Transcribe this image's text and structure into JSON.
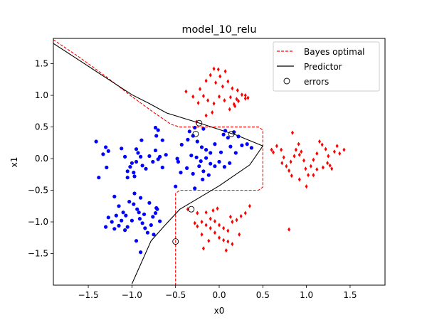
{
  "chart_data": {
    "type": "scatter",
    "title": "model_10_relu",
    "xlabel": "x0",
    "ylabel": "x1",
    "xlim": [
      -1.9,
      1.9
    ],
    "ylim": [
      -2.0,
      1.9
    ],
    "xticks": [
      -1.5,
      -1.0,
      -0.5,
      0.0,
      0.5,
      1.0,
      1.5
    ],
    "xtick_labels": [
      "−1.5",
      "−1.0",
      "−0.5",
      "0.0",
      "0.5",
      "1.0",
      "1.5"
    ],
    "yticks": [
      -1.5,
      -1.0,
      -0.5,
      0.0,
      0.5,
      1.0,
      1.5
    ],
    "ytick_labels": [
      "−1.5",
      "−1.0",
      "−0.5",
      "0.0",
      "0.5",
      "1.0",
      "1.5"
    ],
    "grid": false,
    "legend_position": "top-right",
    "colors": {
      "class0": "#0000ff",
      "class1": "#ff0000",
      "predictor": "#000000",
      "bayes": "#ff0000"
    },
    "legend": [
      {
        "label": "Bayes optimal",
        "style": "dashed-line",
        "color": "#ff0000"
      },
      {
        "label": "Predictor",
        "style": "solid-line",
        "color": "#000000"
      },
      {
        "label": "errors",
        "style": "open-circle",
        "color": "#000000"
      }
    ],
    "series": [
      {
        "class": 0,
        "marker": "dot",
        "points": [
          [
            -1.41,
            0.27
          ],
          [
            -1.33,
            0.07
          ],
          [
            -1.3,
            0.18
          ],
          [
            -1.27,
            0.12
          ],
          [
            -1.29,
            -0.14
          ],
          [
            -1.12,
            0.16
          ],
          [
            -1.08,
            0.03
          ],
          [
            -1.05,
            -0.2
          ],
          [
            -1.02,
            -0.13
          ],
          [
            -1.0,
            -0.07
          ],
          [
            -0.98,
            -0.22
          ],
          [
            -1.05,
            -0.3
          ],
          [
            -0.95,
            -0.05
          ],
          [
            -0.97,
            -0.28
          ],
          [
            -0.93,
            0.09
          ],
          [
            -0.9,
            0.03
          ],
          [
            -0.88,
            -0.11
          ],
          [
            -0.84,
            -0.16
          ],
          [
            -0.8,
            0.04
          ],
          [
            -0.76,
            -0.05
          ],
          [
            -0.73,
            0.13
          ],
          [
            -0.7,
            -0.01
          ],
          [
            -0.68,
            0.03
          ],
          [
            -0.65,
            -0.14
          ],
          [
            -0.61,
            0.06
          ],
          [
            -0.95,
            0.15
          ],
          [
            -0.89,
            0.29
          ],
          [
            -0.72,
            0.36
          ],
          [
            -0.65,
            0.29
          ],
          [
            -0.43,
            0.22
          ],
          [
            -0.36,
            0.3
          ],
          [
            -0.3,
            0.36
          ],
          [
            -0.25,
            0.27
          ],
          [
            -0.2,
            0.18
          ],
          [
            -0.15,
            0.14
          ],
          [
            -0.1,
            0.09
          ],
          [
            -0.05,
            0.23
          ],
          [
            0.02,
            0.1
          ],
          [
            0.05,
            0.38
          ],
          [
            0.1,
            0.33
          ],
          [
            0.13,
            0.19
          ],
          [
            0.19,
            0.09
          ],
          [
            0.26,
            0.21
          ],
          [
            0.32,
            0.23
          ],
          [
            0.37,
            0.17
          ],
          [
            0.22,
            0.35
          ],
          [
            -0.32,
            0.05
          ],
          [
            -0.26,
            0.02
          ],
          [
            -0.21,
            -0.04
          ],
          [
            -0.15,
            0.01
          ],
          [
            -0.1,
            -0.08
          ],
          [
            -0.05,
            -0.12
          ],
          [
            0.0,
            -0.05
          ],
          [
            0.06,
            -0.13
          ],
          [
            0.12,
            -0.07
          ],
          [
            -0.44,
            -0.22
          ],
          [
            -0.37,
            -0.15
          ],
          [
            -0.3,
            -0.24
          ],
          [
            -0.23,
            -0.12
          ],
          [
            -0.18,
            -0.2
          ],
          [
            -0.12,
            -0.26
          ],
          [
            -0.47,
            -0.05
          ],
          [
            -0.28,
            0.49
          ],
          [
            -0.34,
            0.43
          ],
          [
            -0.18,
            0.47
          ],
          [
            0.17,
            0.42
          ],
          [
            0.07,
            0.44
          ],
          [
            -0.73,
            0.49
          ],
          [
            -0.7,
            0.45
          ],
          [
            -0.5,
            -0.44
          ],
          [
            -0.28,
            -0.47
          ],
          [
            -0.19,
            -0.33
          ],
          [
            -0.48,
            0.0
          ],
          [
            -1.38,
            -0.3
          ],
          [
            -1.2,
            -0.6
          ],
          [
            -1.15,
            -0.75
          ],
          [
            -1.1,
            -0.85
          ],
          [
            -1.07,
            -0.9
          ],
          [
            -1.03,
            -0.68
          ],
          [
            -0.98,
            -0.72
          ],
          [
            -0.94,
            -0.8
          ],
          [
            -0.91,
            -0.95
          ],
          [
            -0.88,
            -1.02
          ],
          [
            -0.85,
            -1.1
          ],
          [
            -0.82,
            -1.17
          ],
          [
            -0.78,
            -1.05
          ],
          [
            -0.76,
            -0.92
          ],
          [
            -0.73,
            -0.86
          ],
          [
            -0.71,
            -0.8
          ],
          [
            -0.8,
            -0.7
          ],
          [
            -0.9,
            -0.62
          ],
          [
            -0.97,
            -0.55
          ],
          [
            -1.0,
            -0.98
          ],
          [
            -1.05,
            -1.08
          ],
          [
            -1.08,
            -1.13
          ],
          [
            -1.12,
            -0.98
          ],
          [
            -1.15,
            -1.06
          ],
          [
            -1.2,
            -1.11
          ],
          [
            -1.23,
            -1.0
          ],
          [
            -1.27,
            -0.93
          ],
          [
            -1.3,
            -1.08
          ],
          [
            -0.95,
            -1.3
          ],
          [
            -0.9,
            -1.48
          ],
          [
            -0.75,
            -1.2
          ],
          [
            -0.72,
            -0.78
          ],
          [
            -0.92,
            -0.85
          ],
          [
            -0.86,
            -0.88
          ],
          [
            -0.68,
            -0.99
          ],
          [
            -1.18,
            -0.9
          ]
        ]
      },
      {
        "class": 1,
        "marker": "diamond",
        "points": [
          [
            -0.06,
            1.42
          ],
          [
            -0.01,
            1.41
          ],
          [
            0.07,
            1.38
          ],
          [
            0.01,
            1.3
          ],
          [
            -0.1,
            1.32
          ],
          [
            -0.04,
            1.2
          ],
          [
            0.04,
            1.14
          ],
          [
            0.1,
            1.22
          ],
          [
            -0.15,
            1.23
          ],
          [
            0.15,
            1.11
          ],
          [
            0.21,
            1.08
          ],
          [
            0.26,
            1.01
          ],
          [
            0.2,
            0.94
          ],
          [
            0.13,
            0.97
          ],
          [
            0.06,
            0.92
          ],
          [
            0.0,
            0.98
          ],
          [
            -0.06,
            0.87
          ],
          [
            -0.13,
            0.92
          ],
          [
            -0.18,
            0.99
          ],
          [
            -0.24,
            0.88
          ],
          [
            -0.3,
            0.98
          ],
          [
            -0.38,
            1.06
          ],
          [
            -0.22,
            1.1
          ],
          [
            0.3,
            0.95
          ],
          [
            0.18,
            0.83
          ],
          [
            0.12,
            0.78
          ],
          [
            -0.08,
            0.73
          ],
          [
            -0.15,
            0.68
          ],
          [
            0.22,
            0.91
          ],
          [
            0.3,
            1.0
          ],
          [
            0.33,
            0.96
          ],
          [
            -0.26,
            0.58
          ],
          [
            0.17,
            0.86
          ],
          [
            0.6,
            0.14
          ],
          [
            0.62,
            0.1
          ],
          [
            0.66,
            0.2
          ],
          [
            0.71,
            0.14
          ],
          [
            0.74,
            0.02
          ],
          [
            0.77,
            -0.12
          ],
          [
            0.8,
            -0.19
          ],
          [
            0.82,
            -0.05
          ],
          [
            0.86,
            0.04
          ],
          [
            0.88,
            0.14
          ],
          [
            0.91,
            0.23
          ],
          [
            0.94,
            0.11
          ],
          [
            0.97,
            -0.03
          ],
          [
            0.99,
            -0.16
          ],
          [
            1.02,
            -0.26
          ],
          [
            1.05,
            -0.12
          ],
          [
            1.08,
            -0.02
          ],
          [
            1.12,
            0.08
          ],
          [
            1.15,
            0.27
          ],
          [
            1.18,
            0.22
          ],
          [
            1.22,
            0.15
          ],
          [
            1.25,
            0.04
          ],
          [
            1.27,
            -0.11
          ],
          [
            1.29,
            -0.16
          ],
          [
            1.32,
            0.11
          ],
          [
            1.35,
            0.2
          ],
          [
            1.38,
            0.08
          ],
          [
            1.43,
            0.14
          ],
          [
            0.84,
            0.41
          ],
          [
            1.08,
            -0.26
          ],
          [
            1.0,
            -0.44
          ],
          [
            0.92,
            -0.33
          ],
          [
            0.83,
            -0.27
          ],
          [
            0.72,
            -0.07
          ],
          [
            1.12,
            -0.17
          ],
          [
            1.19,
            -0.14
          ],
          [
            1.24,
            -0.07
          ],
          [
            0.92,
            0.06
          ],
          [
            -0.25,
            -0.86
          ],
          [
            -0.15,
            -0.85
          ],
          [
            -0.1,
            -0.95
          ],
          [
            -0.05,
            -0.99
          ],
          [
            0.0,
            -1.05
          ],
          [
            0.05,
            -1.1
          ],
          [
            0.1,
            -1.14
          ],
          [
            0.15,
            -1.0
          ],
          [
            0.2,
            -0.97
          ],
          [
            0.25,
            -0.91
          ],
          [
            0.3,
            -0.86
          ],
          [
            -0.2,
            -1.0
          ],
          [
            -0.15,
            -1.05
          ],
          [
            -0.1,
            -1.1
          ],
          [
            -0.05,
            -1.17
          ],
          [
            0.0,
            -1.25
          ],
          [
            0.05,
            -1.29
          ],
          [
            0.1,
            -1.31
          ],
          [
            0.15,
            -1.35
          ],
          [
            -0.25,
            -1.07
          ],
          [
            -0.2,
            -1.2
          ],
          [
            -0.12,
            -1.3
          ],
          [
            0.08,
            -1.45
          ],
          [
            -0.18,
            -1.42
          ],
          [
            -0.02,
            -0.79
          ],
          [
            -0.07,
            -0.82
          ],
          [
            0.13,
            -0.92
          ],
          [
            0.23,
            -1.2
          ],
          [
            0.35,
            -0.75
          ],
          [
            0.8,
            -1.12
          ],
          [
            -0.36,
            -0.8
          ],
          [
            -0.28,
            -1.02
          ]
        ]
      }
    ],
    "errors": [
      [
        -0.23,
        0.56
      ],
      [
        -0.27,
        0.39
      ],
      [
        0.14,
        0.39
      ],
      [
        -0.32,
        -0.8
      ],
      [
        -0.5,
        -1.31
      ]
    ],
    "predictor_line": [
      [
        -1.9,
        1.82
      ],
      [
        -1.6,
        1.55
      ],
      [
        -1.3,
        1.28
      ],
      [
        -1.0,
        1.01
      ],
      [
        -0.8,
        0.87
      ],
      [
        -0.6,
        0.72
      ],
      [
        -0.2,
        0.55
      ],
      [
        0.2,
        0.37
      ],
      [
        0.5,
        0.2
      ],
      [
        0.35,
        -0.1
      ],
      [
        0.0,
        -0.43
      ],
      [
        -0.45,
        -0.8
      ],
      [
        -0.62,
        -1.05
      ],
      [
        -0.78,
        -1.3
      ],
      [
        -1.0,
        -1.98
      ]
    ],
    "bayes_line": [
      [
        -1.9,
        1.88
      ],
      [
        -1.6,
        1.6
      ],
      [
        -1.3,
        1.3
      ],
      [
        -1.0,
        0.98
      ],
      [
        -0.75,
        0.73
      ],
      [
        -0.55,
        0.54
      ],
      [
        -0.45,
        0.5
      ],
      [
        0.45,
        0.5
      ],
      [
        0.5,
        0.45
      ],
      [
        0.5,
        -0.45
      ],
      [
        0.45,
        -0.5
      ],
      [
        -0.45,
        -0.5
      ],
      [
        -0.5,
        -0.55
      ],
      [
        -0.5,
        -2.0
      ]
    ]
  }
}
